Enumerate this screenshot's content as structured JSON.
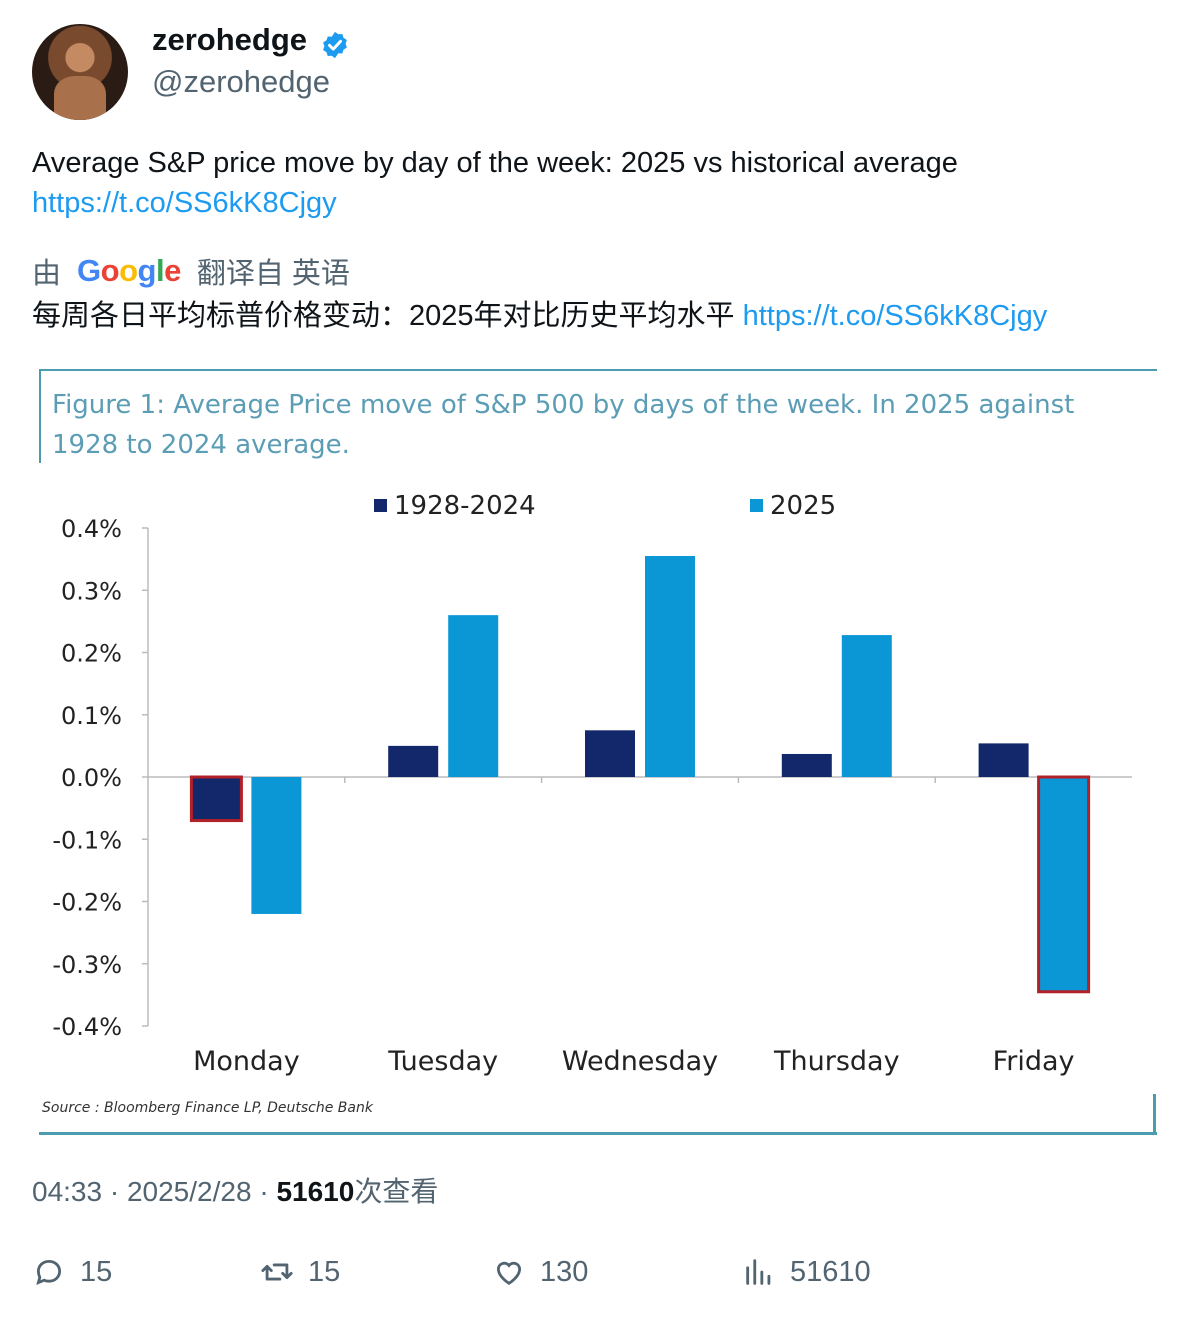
{
  "user": {
    "name": "zerohedge",
    "handle": "@zerohedge",
    "verified_color": "#1d9bf0"
  },
  "tweet": {
    "text": "Average S&P price move by day of the week: 2025 vs historical average",
    "link": "https://t.co/SS6kK8Cjgy"
  },
  "translation": {
    "prefix": "由",
    "provider": "Google",
    "suffix": "翻译自 英语",
    "text": "每周各日平均标普价格变动：2025年对比历史平均水平",
    "link": "https://t.co/SS6kK8Cjgy"
  },
  "meta": {
    "time": "04:33",
    "date": "2025/2/28",
    "views": "51610",
    "views_label": "次查看",
    "sep": "·"
  },
  "actions": {
    "replies": "15",
    "retweets": "15",
    "likes": "130",
    "views": "51610"
  },
  "chart_data": {
    "type": "bar",
    "title": "Figure 1: Average Price move of S&P 500 by days of the week. In 2025 against 1928 to 2024 average.",
    "categories": [
      "Monday",
      "Tuesday",
      "Wednesday",
      "Thursday",
      "Friday"
    ],
    "series": [
      {
        "name": "1928-2024",
        "color": "#13286b",
        "values": [
          -0.07,
          0.05,
          0.075,
          0.037,
          0.054
        ]
      },
      {
        "name": "2025",
        "color": "#0b97d6",
        "values": [
          -0.22,
          0.26,
          0.355,
          0.228,
          -0.345
        ]
      }
    ],
    "highlighted": [
      {
        "series": "1928-2024",
        "category": "Monday"
      },
      {
        "series": "2025",
        "category": "Friday"
      }
    ],
    "highlight_color": "#b22028",
    "ylim": [
      -0.4,
      0.4
    ],
    "yticks": [
      "0.4%",
      "0.3%",
      "0.2%",
      "0.1%",
      "0.0%",
      "-0.1%",
      "-0.2%",
      "-0.3%",
      "-0.4%"
    ],
    "ytick_values": [
      0.4,
      0.3,
      0.2,
      0.1,
      0.0,
      -0.1,
      -0.2,
      -0.3,
      -0.4
    ],
    "legend_position": "top",
    "source": "Source : Bloomberg Finance LP, Deutsche Bank",
    "accent_color": "#4c9cb0"
  }
}
